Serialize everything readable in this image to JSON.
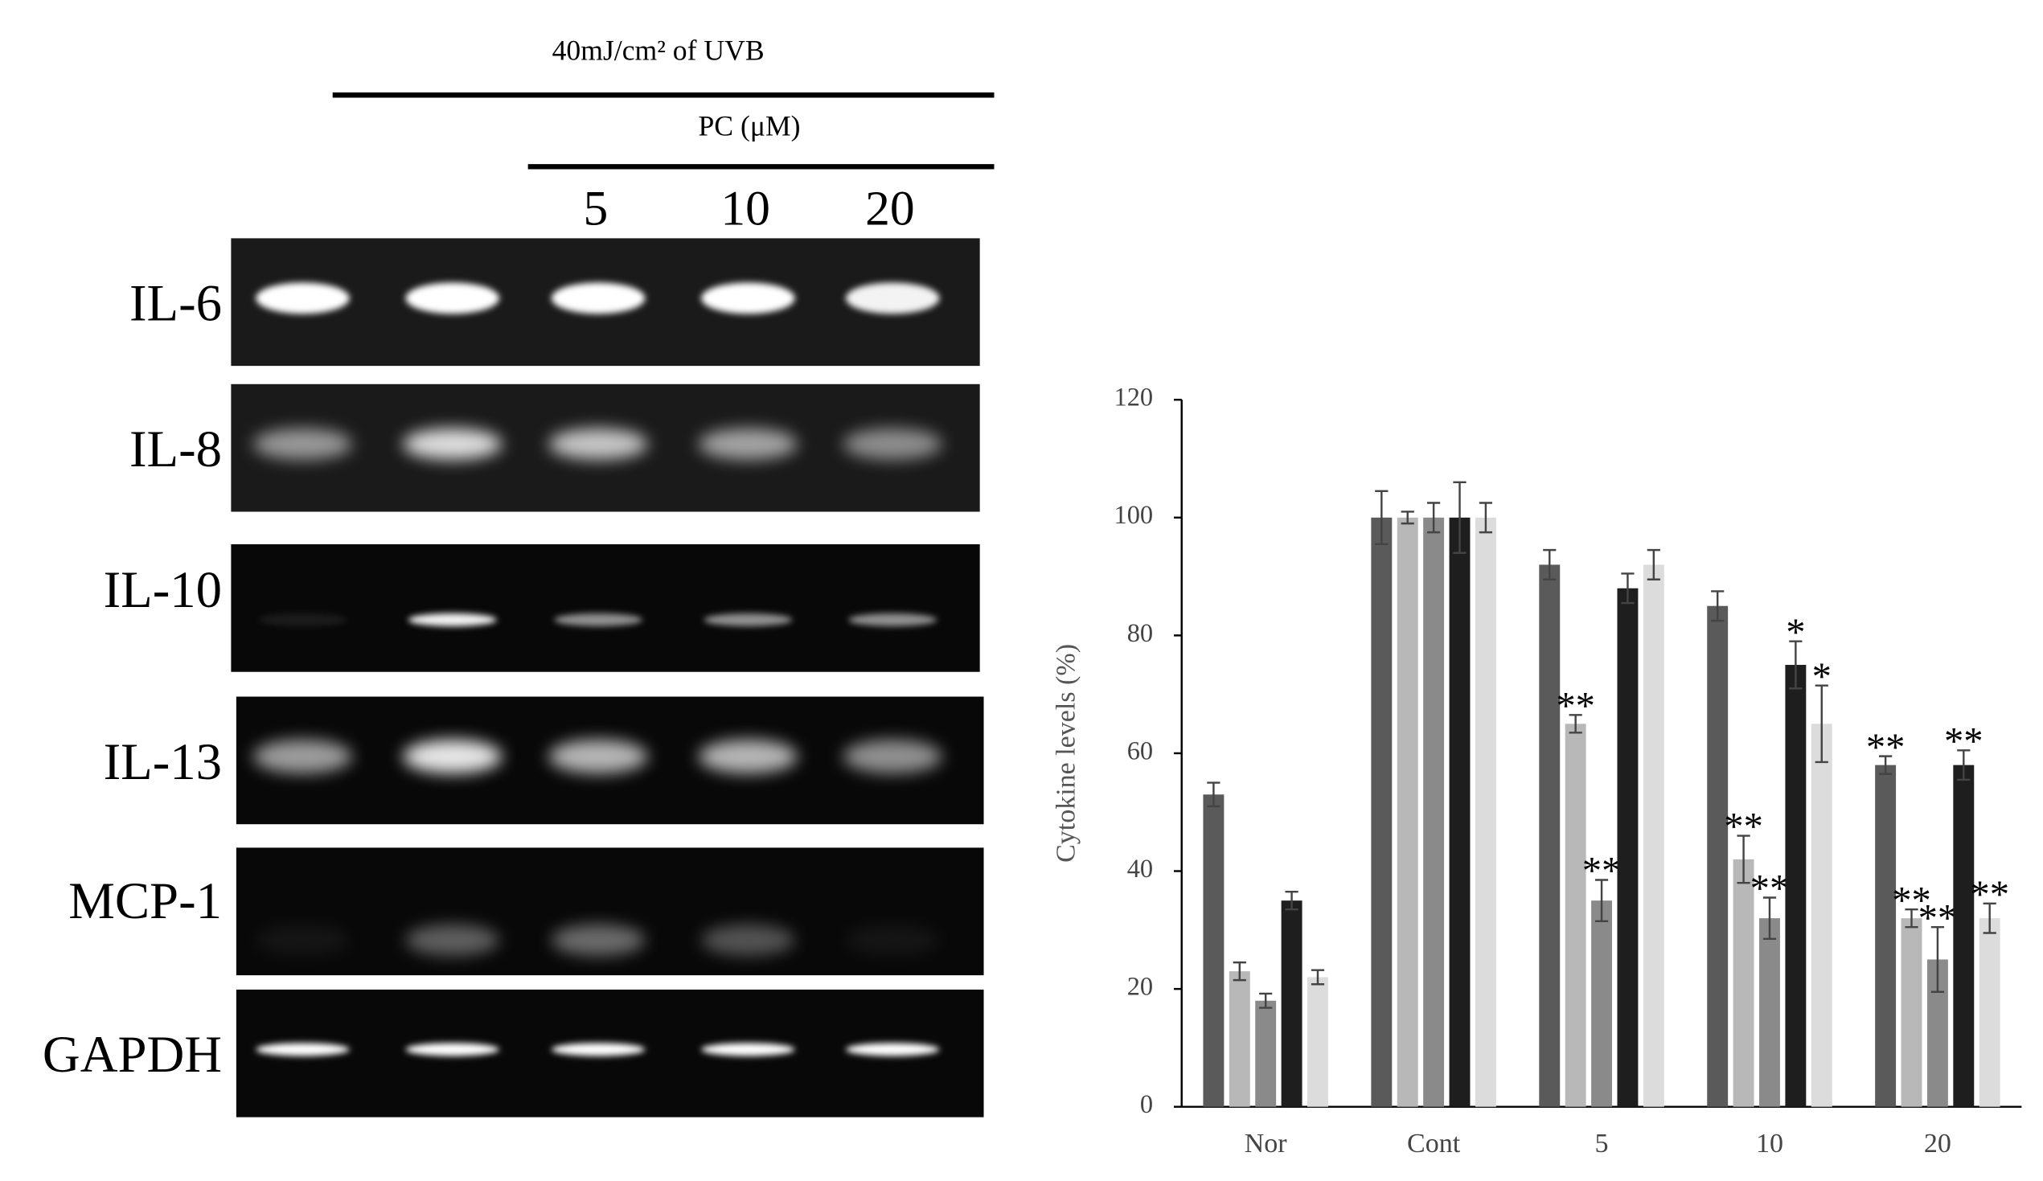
{
  "gel": {
    "header": "40mJ/cm² of UVB",
    "treatment": "PC (μM)",
    "lanes": [
      "5",
      "10",
      "20"
    ],
    "rows": [
      "IL-6",
      "IL-8",
      "IL-10",
      "IL-13",
      "MCP-1",
      "GAPDH"
    ]
  },
  "chart_data": {
    "type": "bar",
    "ylabel": "Cytokine levels (%)",
    "categories": [
      "Nor",
      "Cont",
      "5",
      "10",
      "20"
    ],
    "series": [
      {
        "color": "#5a5a5a",
        "values": [
          53,
          100,
          92,
          85,
          58
        ],
        "errors": [
          2,
          4.5,
          2.5,
          2.5,
          1.5
        ],
        "significance": [
          null,
          null,
          null,
          null,
          "**"
        ]
      },
      {
        "color": "#b8b8b8",
        "values": [
          23,
          100,
          65,
          42,
          32
        ],
        "errors": [
          1.5,
          1,
          1.5,
          4,
          1.5
        ],
        "significance": [
          null,
          null,
          "**",
          "**",
          "**"
        ]
      },
      {
        "color": "#8a8a8a",
        "values": [
          18,
          100,
          35,
          32,
          25
        ],
        "errors": [
          1.2,
          2.5,
          3.5,
          3.5,
          5.5
        ],
        "significance": [
          null,
          null,
          "**",
          "**",
          "**"
        ]
      },
      {
        "color": "#1e1e1e",
        "values": [
          35,
          100,
          88,
          75,
          58
        ],
        "errors": [
          1.5,
          6,
          2.5,
          4,
          2.5
        ],
        "significance": [
          null,
          null,
          null,
          "*",
          "**"
        ]
      },
      {
        "color": "#dcdcdc",
        "values": [
          22,
          100,
          92,
          65,
          32
        ],
        "errors": [
          1.2,
          2.5,
          2.5,
          6.5,
          2.5
        ],
        "significance": [
          null,
          null,
          null,
          "*",
          "**"
        ]
      }
    ],
    "ylim": [
      0,
      120
    ],
    "yticks": [
      0,
      20,
      40,
      60,
      80,
      100,
      120
    ],
    "grid": false
  }
}
